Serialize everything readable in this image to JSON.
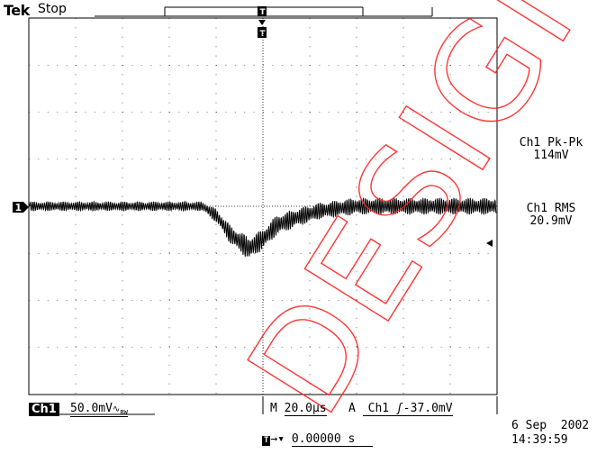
{
  "header": {
    "brand": "Tek",
    "run_status": "Stop"
  },
  "channel": {
    "label": "Ch1",
    "scale": "50.0mV",
    "coupling_icon": "ac-bandwidth-icon",
    "ground_marker": "1"
  },
  "timebase": {
    "prefix": "M",
    "scale": "20.0μs",
    "trigger_mode": "A",
    "trigger_source": "Ch1",
    "trigger_slope_icon": "rising-edge-icon",
    "trigger_level": "-37.0mV",
    "trigger_position_label": "0.00000 s"
  },
  "measurements": [
    {
      "name": "Ch1 Pk-Pk",
      "value": "114mV"
    },
    {
      "name": "Ch1 RMS",
      "value": "20.9mV"
    }
  ],
  "timestamp": {
    "date": "6 Sep  2002",
    "time": "14:39:59"
  },
  "watermark": "DESIGN",
  "colors": {
    "background": "#ffffff",
    "trace": "#000000",
    "watermark": "#ff0000"
  },
  "chart_data": {
    "type": "line",
    "xlabel": "",
    "ylabel": "",
    "grid": true,
    "x_divisions": 10,
    "y_divisions": 8,
    "trace_envelope": [
      {
        "t": 0.0,
        "center": 0.0,
        "amp": 0.1
      },
      {
        "t": 0.2,
        "center": 0.0,
        "amp": 0.1
      },
      {
        "t": 0.37,
        "center": 0.0,
        "amp": 0.1
      },
      {
        "t": 0.4,
        "center": -0.2,
        "amp": 0.15
      },
      {
        "t": 0.43,
        "center": -0.6,
        "amp": 0.2
      },
      {
        "t": 0.47,
        "center": -0.9,
        "amp": 0.25
      },
      {
        "t": 0.5,
        "center": -0.7,
        "amp": 0.22
      },
      {
        "t": 0.53,
        "center": -0.4,
        "amp": 0.22
      },
      {
        "t": 0.57,
        "center": -0.25,
        "amp": 0.2
      },
      {
        "t": 0.62,
        "center": -0.1,
        "amp": 0.18
      },
      {
        "t": 0.7,
        "center": 0.0,
        "amp": 0.18
      },
      {
        "t": 0.85,
        "center": 0.0,
        "amp": 0.18
      },
      {
        "t": 1.0,
        "center": 0.0,
        "amp": 0.18
      }
    ]
  }
}
